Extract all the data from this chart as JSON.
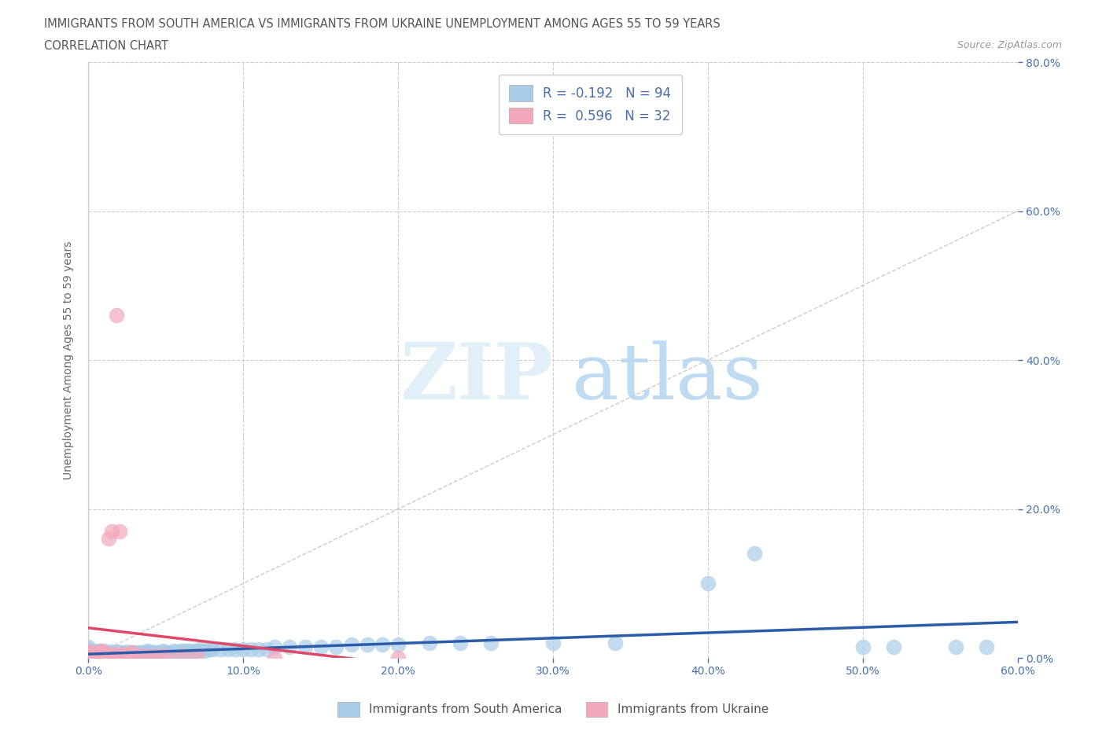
{
  "title_line1": "IMMIGRANTS FROM SOUTH AMERICA VS IMMIGRANTS FROM UKRAINE UNEMPLOYMENT AMONG AGES 55 TO 59 YEARS",
  "title_line2": "CORRELATION CHART",
  "source_text": "Source: ZipAtlas.com",
  "ylabel": "Unemployment Among Ages 55 to 59 years",
  "xlim": [
    0.0,
    0.6
  ],
  "ylim": [
    0.0,
    0.8
  ],
  "xtick_labels": [
    "0.0%",
    "10.0%",
    "20.0%",
    "30.0%",
    "40.0%",
    "50.0%",
    "60.0%"
  ],
  "xtick_vals": [
    0.0,
    0.1,
    0.2,
    0.3,
    0.4,
    0.5,
    0.6
  ],
  "ytick_vals": [
    0.0,
    0.2,
    0.4,
    0.6,
    0.8
  ],
  "ytick_labels_right": [
    "0.0%",
    "20.0%",
    "40.0%",
    "60.0%",
    "80.0%"
  ],
  "watermark_zip": "ZIP",
  "watermark_atlas": "atlas",
  "legend_label1": "R = -0.192   N = 94",
  "legend_label2": "R =  0.596   N = 32",
  "color_sa": "#a8cce8",
  "color_uk": "#f4a8bc",
  "color_sa_line": "#2a5ca8",
  "color_uk_line": "#e04868",
  "color_diag": "#cccccc",
  "color_grid": "#cccccc",
  "axis_label_color": "#4a6fa8",
  "title_color": "#555555",
  "south_america_x": [
    0.0,
    0.0,
    0.0,
    0.0,
    0.0,
    0.0,
    0.0,
    0.0,
    0.005,
    0.005,
    0.005,
    0.005,
    0.007,
    0.007,
    0.007,
    0.008,
    0.01,
    0.01,
    0.01,
    0.01,
    0.01,
    0.012,
    0.012,
    0.013,
    0.015,
    0.015,
    0.015,
    0.016,
    0.018,
    0.018,
    0.02,
    0.02,
    0.022,
    0.022,
    0.023,
    0.025,
    0.025,
    0.027,
    0.028,
    0.03,
    0.03,
    0.032,
    0.033,
    0.035,
    0.035,
    0.037,
    0.038,
    0.04,
    0.04,
    0.042,
    0.043,
    0.045,
    0.047,
    0.048,
    0.05,
    0.052,
    0.055,
    0.057,
    0.06,
    0.062,
    0.065,
    0.068,
    0.07,
    0.072,
    0.075,
    0.078,
    0.08,
    0.085,
    0.09,
    0.095,
    0.1,
    0.105,
    0.11,
    0.115,
    0.12,
    0.13,
    0.14,
    0.15,
    0.16,
    0.17,
    0.18,
    0.19,
    0.2,
    0.22,
    0.24,
    0.26,
    0.3,
    0.34,
    0.4,
    0.43,
    0.5,
    0.52,
    0.56,
    0.58
  ],
  "south_america_y": [
    0.0,
    0.0,
    0.005,
    0.005,
    0.008,
    0.01,
    0.012,
    0.015,
    0.0,
    0.003,
    0.005,
    0.01,
    0.003,
    0.005,
    0.008,
    0.01,
    0.0,
    0.003,
    0.005,
    0.007,
    0.01,
    0.003,
    0.007,
    0.005,
    0.003,
    0.005,
    0.008,
    0.005,
    0.005,
    0.008,
    0.003,
    0.007,
    0.003,
    0.007,
    0.005,
    0.005,
    0.008,
    0.005,
    0.007,
    0.003,
    0.007,
    0.005,
    0.007,
    0.003,
    0.007,
    0.007,
    0.01,
    0.005,
    0.008,
    0.005,
    0.007,
    0.007,
    0.007,
    0.01,
    0.007,
    0.007,
    0.01,
    0.008,
    0.01,
    0.01,
    0.01,
    0.01,
    0.01,
    0.012,
    0.01,
    0.012,
    0.012,
    0.012,
    0.012,
    0.012,
    0.012,
    0.012,
    0.012,
    0.012,
    0.015,
    0.015,
    0.015,
    0.015,
    0.015,
    0.018,
    0.018,
    0.018,
    0.018,
    0.02,
    0.02,
    0.02,
    0.02,
    0.02,
    0.1,
    0.14,
    0.015,
    0.015,
    0.015,
    0.015
  ],
  "ukraine_x": [
    0.0,
    0.0,
    0.0,
    0.0,
    0.0,
    0.005,
    0.005,
    0.007,
    0.008,
    0.008,
    0.01,
    0.01,
    0.012,
    0.013,
    0.015,
    0.015,
    0.017,
    0.018,
    0.02,
    0.02,
    0.022,
    0.025,
    0.028,
    0.03,
    0.035,
    0.04,
    0.045,
    0.05,
    0.06,
    0.07,
    0.12,
    0.2
  ],
  "ukraine_y": [
    0.0,
    0.003,
    0.005,
    0.007,
    0.01,
    0.0,
    0.005,
    0.005,
    0.0,
    0.01,
    0.003,
    0.007,
    0.005,
    0.16,
    0.003,
    0.17,
    0.005,
    0.46,
    0.003,
    0.17,
    0.005,
    0.005,
    0.007,
    0.003,
    0.003,
    0.003,
    0.003,
    0.003,
    0.003,
    0.003,
    0.0,
    0.0
  ]
}
